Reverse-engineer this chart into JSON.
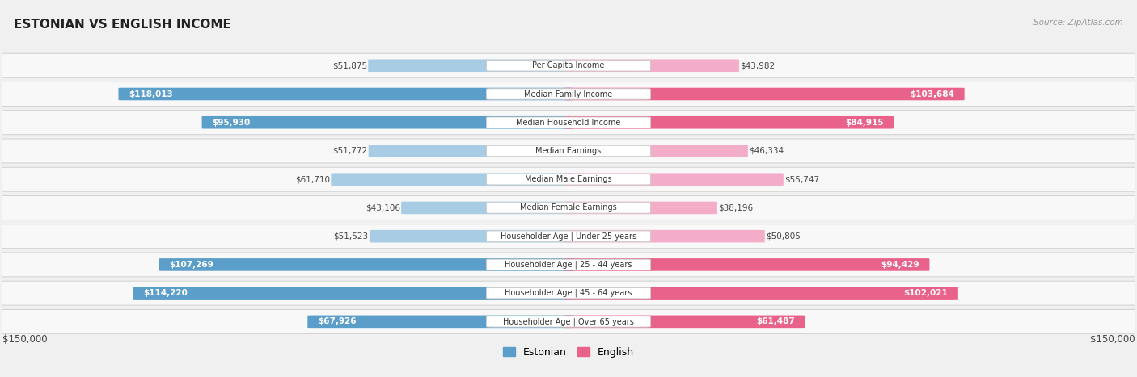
{
  "title": "ESTONIAN VS ENGLISH INCOME",
  "source": "Source: ZipAtlas.com",
  "categories": [
    "Per Capita Income",
    "Median Family Income",
    "Median Household Income",
    "Median Earnings",
    "Median Male Earnings",
    "Median Female Earnings",
    "Householder Age | Under 25 years",
    "Householder Age | 25 - 44 years",
    "Householder Age | 45 - 64 years",
    "Householder Age | Over 65 years"
  ],
  "estonian_values": [
    51875,
    118013,
    95930,
    51772,
    61710,
    43106,
    51523,
    107269,
    114220,
    67926
  ],
  "english_values": [
    43982,
    103684,
    84915,
    46334,
    55747,
    38196,
    50805,
    94429,
    102021,
    61487
  ],
  "estonian_labels": [
    "$51,875",
    "$118,013",
    "$95,930",
    "$51,772",
    "$61,710",
    "$43,106",
    "$51,523",
    "$107,269",
    "$114,220",
    "$67,926"
  ],
  "english_labels": [
    "$43,982",
    "$103,684",
    "$84,915",
    "$46,334",
    "$55,747",
    "$38,196",
    "$50,805",
    "$94,429",
    "$102,021",
    "$61,487"
  ],
  "estonian_color_light": "#a8cce4",
  "estonian_color_strong": "#5b9ec9",
  "english_color_light": "#f4adc8",
  "english_color_strong": "#e8628a",
  "max_value": 150000,
  "bg_color": "#f0f0f0",
  "row_bg_color": "#f8f8f8",
  "legend_estonian": "Estonian",
  "legend_english": "English",
  "xlabel_left": "$150,000",
  "xlabel_right": "$150,000",
  "estonian_threshold": 65000,
  "english_threshold": 60000
}
